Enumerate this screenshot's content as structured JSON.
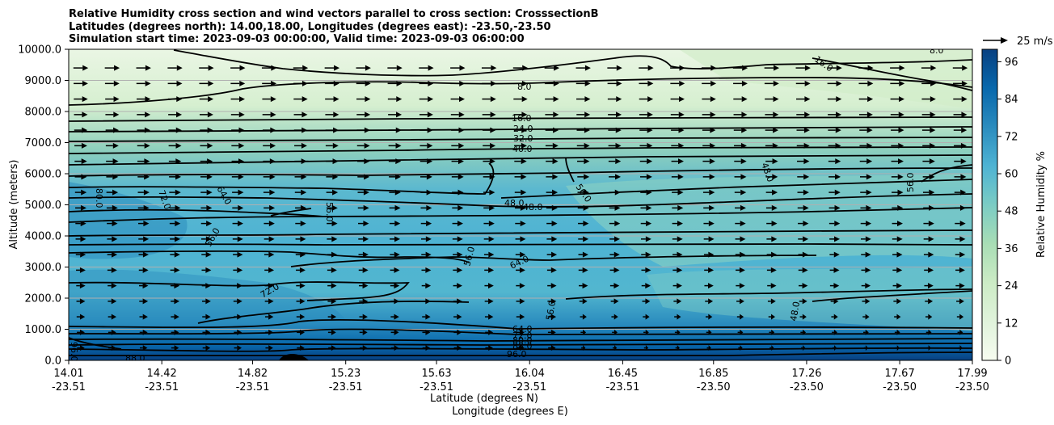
{
  "chart_data": {
    "type": "contour",
    "title_lines": [
      "Relative Humidity cross section and wind vectors parallel to cross section: CrosssectionB",
      "Latitudes (degrees north): 14.00,18.00, Longitudes (degrees east): -23.50,-23.50",
      "Simulation start time: 2023-09-03 00:00:00, Valid time: 2023-09-03 06:00:00"
    ],
    "ylabel": "Altitude (meters)",
    "xlabel_lat": "Latitude (degrees N)",
    "xlabel_lon": "Longitude (degrees E)",
    "ylim": [
      0,
      10000
    ],
    "y_ticks": [
      "0.0",
      "1000.0",
      "2000.0",
      "3000.0",
      "4000.0",
      "5000.0",
      "6000.0",
      "7000.0",
      "8000.0",
      "9000.0",
      "10000.0"
    ],
    "x_ticks": [
      {
        "lat": "14.01",
        "lon": "-23.51"
      },
      {
        "lat": "14.42",
        "lon": "-23.51"
      },
      {
        "lat": "14.82",
        "lon": "-23.51"
      },
      {
        "lat": "15.23",
        "lon": "-23.51"
      },
      {
        "lat": "15.63",
        "lon": "-23.51"
      },
      {
        "lat": "16.04",
        "lon": "-23.51"
      },
      {
        "lat": "16.45",
        "lon": "-23.51"
      },
      {
        "lat": "16.85",
        "lon": "-23.50"
      },
      {
        "lat": "17.26",
        "lon": "-23.50"
      },
      {
        "lat": "17.67",
        "lon": "-23.50"
      },
      {
        "lat": "17.99",
        "lon": "-23.50"
      }
    ],
    "grid": "horizontal",
    "colorbar": {
      "label": "Relative Humidity %",
      "ticks": [
        "0",
        "12",
        "24",
        "36",
        "48",
        "60",
        "72",
        "84",
        "96"
      ],
      "range": [
        0,
        100
      ],
      "colormap": "GnBu",
      "colors": [
        "#f7fcf0",
        "#e0f3db",
        "#ccebc5",
        "#a8ddb5",
        "#7bccc4",
        "#4eb3d3",
        "#2b8cbe",
        "#0868ac",
        "#084081"
      ]
    },
    "quiver_key": "25 m/s",
    "contour_labels": [
      "8.0",
      "16.0",
      "24.0",
      "32.0",
      "40.0",
      "48.0",
      "56.0",
      "64.0",
      "72.0",
      "80.0",
      "88.0",
      "96.0"
    ],
    "rh_profile_by_altitude": [
      {
        "altitude": 0,
        "rh": 96
      },
      {
        "altitude": 500,
        "rh": 88
      },
      {
        "altitude": 1000,
        "rh": 72
      },
      {
        "altitude": 1500,
        "rh": 62
      },
      {
        "altitude": 2000,
        "rh": 60
      },
      {
        "altitude": 2500,
        "rh": 62
      },
      {
        "altitude": 3000,
        "rh": 60
      },
      {
        "altitude": 4000,
        "rh": 58
      },
      {
        "altitude": 5000,
        "rh": 56
      },
      {
        "altitude": 6000,
        "rh": 52
      },
      {
        "altitude": 7000,
        "rh": 36
      },
      {
        "altitude": 8000,
        "rh": 16
      },
      {
        "altitude": 9000,
        "rh": 8
      },
      {
        "altitude": 10000,
        "rh": 6
      }
    ]
  },
  "colors": {
    "contour": "#000000",
    "grid": "#b0b0b0"
  }
}
